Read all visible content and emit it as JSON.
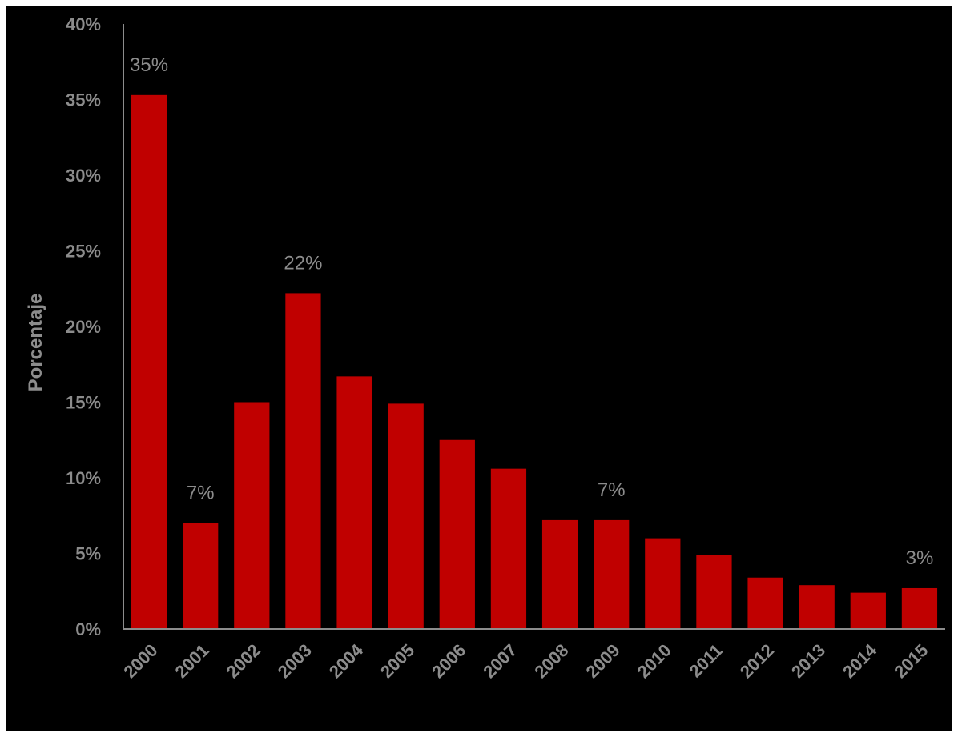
{
  "chart_data": {
    "type": "bar",
    "title": "",
    "xlabel": "",
    "ylabel": "Porcentaje",
    "ylim": [
      0,
      40
    ],
    "y_ticks": [
      "0%",
      "5%",
      "10%",
      "15%",
      "20%",
      "25%",
      "30%",
      "35%",
      "40%"
    ],
    "categories": [
      "2000",
      "2001",
      "2002",
      "2003",
      "2004",
      "2005",
      "2006",
      "2007",
      "2008",
      "2009",
      "2010",
      "2011",
      "2012",
      "2013",
      "2014",
      "2015"
    ],
    "values": [
      35.3,
      7.0,
      15.0,
      22.2,
      16.7,
      14.9,
      12.5,
      10.6,
      7.2,
      7.2,
      6.0,
      4.9,
      3.4,
      2.9,
      2.4,
      2.7
    ],
    "data_labels": [
      {
        "index": 0,
        "text": "35%"
      },
      {
        "index": 1,
        "text": "7%"
      },
      {
        "index": 3,
        "text": "22%"
      },
      {
        "index": 9,
        "text": "7%"
      },
      {
        "index": 15,
        "text": "3%"
      }
    ],
    "grid": false,
    "legend": "none",
    "colors": {
      "bar": "#c00000",
      "text": "#8c8c8c",
      "axis": "#8c8c8c",
      "background": "#000000"
    }
  }
}
